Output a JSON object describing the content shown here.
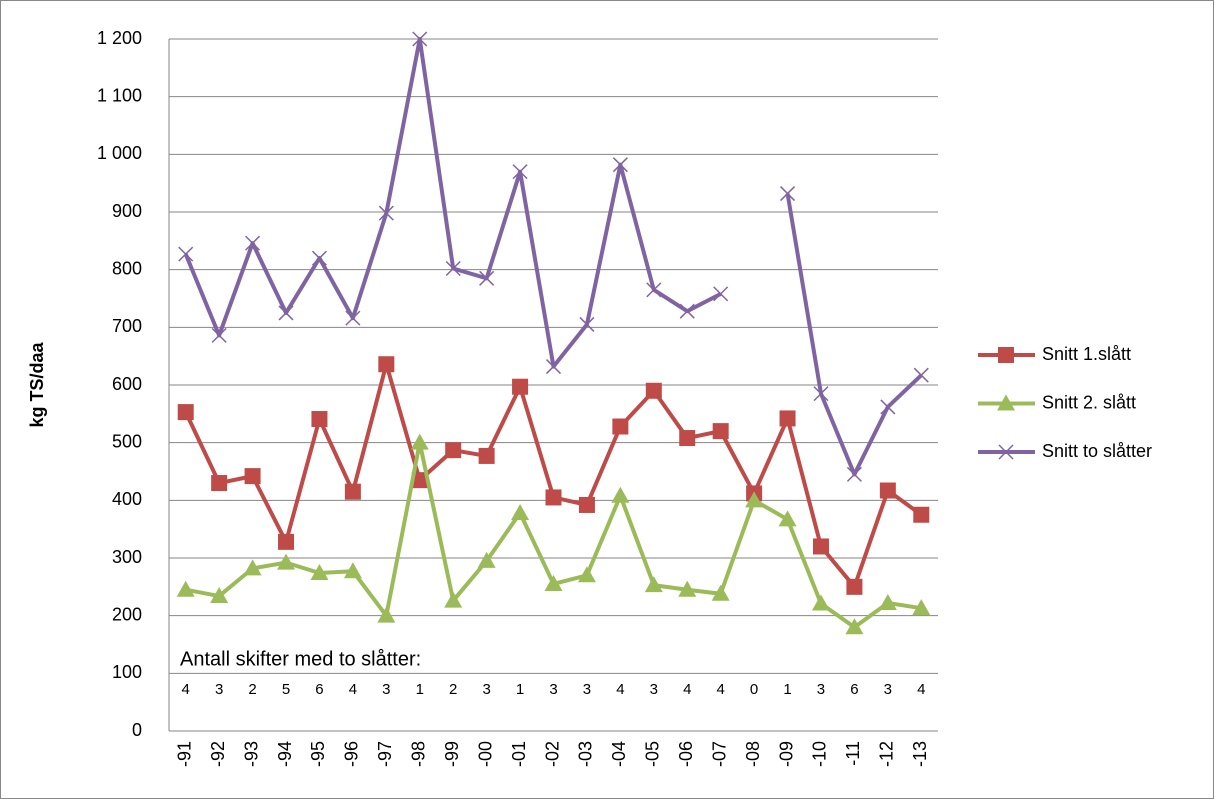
{
  "chart_data": {
    "type": "line",
    "ylabel": "kg TS/daa",
    "annotation": "Antall skifter med to slåtter:",
    "counts": [
      4,
      3,
      2,
      5,
      6,
      4,
      3,
      1,
      2,
      3,
      1,
      3,
      3,
      4,
      3,
      4,
      4,
      0,
      1,
      3,
      6,
      3,
      4
    ],
    "categories": [
      "-91",
      "-92",
      "-93",
      "-94",
      "-95",
      "-96",
      "-97",
      "-98",
      "-99",
      "-00",
      "-01",
      "-02",
      "-03",
      "-04",
      "-05",
      "-06",
      "-07",
      "-08",
      "-09",
      "-10",
      "-11",
      "-12",
      "-13"
    ],
    "series": [
      {
        "name": "Snitt 1.slått",
        "color": "#be4b48",
        "marker": "square",
        "values": [
          553,
          430,
          442,
          328,
          541,
          415,
          636,
          435,
          487,
          477,
          597,
          405,
          392,
          528,
          590,
          508,
          520,
          412,
          542,
          320,
          250,
          417,
          375
        ]
      },
      {
        "name": "Snitt 2. slått",
        "color": "#9bbb59",
        "marker": "triangle",
        "values": [
          245,
          234,
          282,
          292,
          274,
          277,
          200,
          500,
          226,
          295,
          378,
          255,
          270,
          408,
          253,
          245,
          238,
          400,
          367,
          221,
          180,
          222,
          213
        ]
      },
      {
        "name": "Snitt to slåtter",
        "color": "#8064a2",
        "marker": "x",
        "values": [
          827,
          686,
          846,
          725,
          820,
          716,
          898,
          1200,
          802,
          785,
          970,
          632,
          705,
          982,
          765,
          728,
          758,
          null,
          932,
          585,
          445,
          562,
          617
        ]
      }
    ],
    "ylim": [
      0,
      1200
    ],
    "yticks": [
      0,
      100,
      200,
      300,
      400,
      500,
      600,
      700,
      800,
      900,
      {
        "value": 1000,
        "label": "1 000"
      },
      {
        "value": 1100,
        "label": "1 100"
      },
      {
        "value": 1200,
        "label": "1 200"
      }
    ],
    "grid": true,
    "legend": "right"
  }
}
